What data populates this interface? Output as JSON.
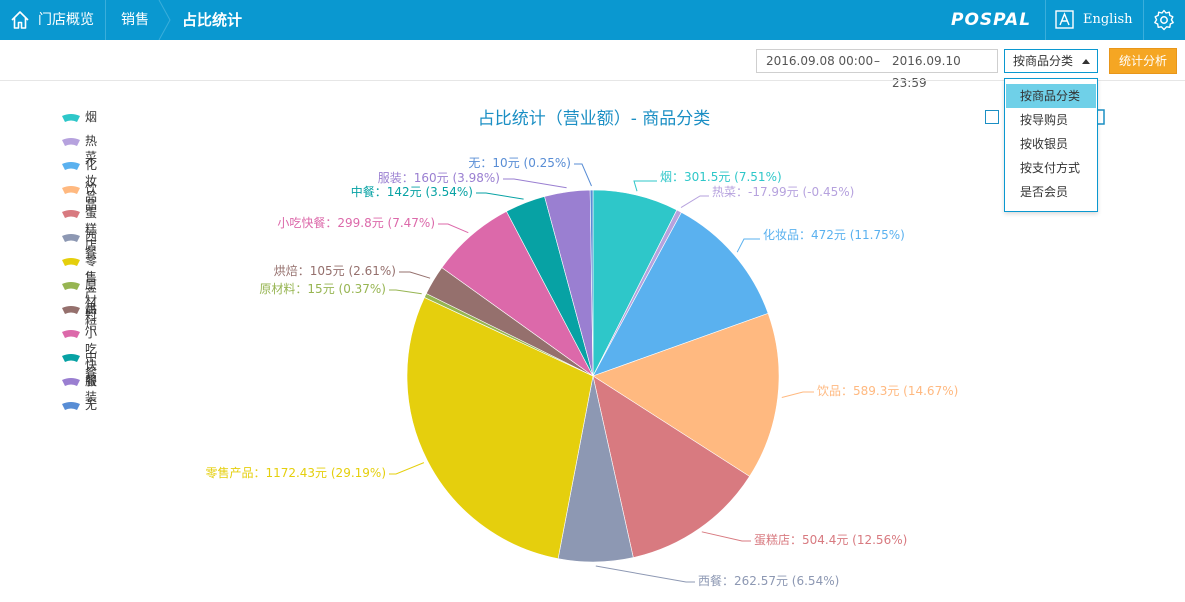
{
  "header": {
    "home_label": "门店概览",
    "crumb_sales": "销售",
    "crumb_current": "占比统计",
    "logo_text": "POSPAL",
    "lang_label": "English",
    "bg_color": "#0a98d0"
  },
  "toolbar": {
    "date_start": "2016.09.08 00:00",
    "date_sep": "–",
    "date_end": "2016.09.10 23:59",
    "group_select_value": "按商品分类",
    "analyze_button": "统计分析"
  },
  "dropdown": {
    "options": [
      "按商品分类",
      "按导购员",
      "按收银员",
      "按支付方式",
      "是否会员"
    ],
    "selected_index": 0
  },
  "chart_data": {
    "type": "pie",
    "title": "占比统计（营业额）- 商品分类",
    "legend_position": "left",
    "slices": [
      {
        "name": "烟",
        "value": 301.5,
        "label": "烟：301.5元 (7.51%)",
        "color": "#2ec7c9"
      },
      {
        "name": "热菜",
        "value": -17.99,
        "label": "热菜：-17.99元 (-0.45%)",
        "color": "#b6a2de"
      },
      {
        "name": "化妆品",
        "value": 472,
        "label": "化妆品：472元 (11.75%)",
        "color": "#5ab1ef"
      },
      {
        "name": "饮品",
        "value": 589.3,
        "label": "饮品：589.3元 (14.67%)",
        "color": "#ffb980"
      },
      {
        "name": "蛋糕店",
        "value": 504.4,
        "label": "蛋糕店：504.4元 (12.56%)",
        "color": "#d87a80"
      },
      {
        "name": "西餐",
        "value": 262.57,
        "label": "西餐：262.57元 (6.54%)",
        "color": "#8d98b3"
      },
      {
        "name": "零售产品",
        "value": 1172.43,
        "label": "零售产品：1172.43元 (29.19%)",
        "color": "#e5cf0d"
      },
      {
        "name": "原材料",
        "value": 15,
        "label": "原材料：15元 (0.37%)",
        "color": "#97b552"
      },
      {
        "name": "烘焙",
        "value": 105,
        "label": "烘焙：105元 (2.61%)",
        "color": "#95706d"
      },
      {
        "name": "小吃快餐",
        "value": 299.8,
        "label": "小吃快餐：299.8元 (7.47%)",
        "color": "#dc69aa"
      },
      {
        "name": "中餐",
        "value": 142,
        "label": "中餐：142元 (3.54%)",
        "color": "#07a2a4"
      },
      {
        "name": "服装",
        "value": 160,
        "label": "服装：160元 (3.98%)",
        "color": "#9a7fd1"
      },
      {
        "name": "无",
        "value": 10,
        "label": "无：10元 (0.25%)",
        "color": "#588dd5"
      }
    ]
  }
}
